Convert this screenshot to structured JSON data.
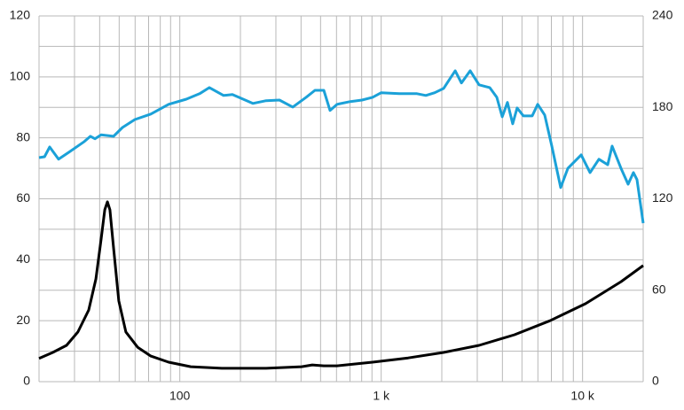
{
  "chart_data": {
    "type": "line",
    "xscale": "log",
    "xlim": [
      20,
      20000
    ],
    "xticks": [
      {
        "value": 100,
        "label": "100"
      },
      {
        "value": 1000,
        "label": "1 k"
      },
      {
        "value": 10000,
        "label": "10 k"
      }
    ],
    "xgrid": [
      20,
      30,
      40,
      50,
      60,
      70,
      80,
      90,
      100,
      200,
      300,
      400,
      500,
      600,
      700,
      800,
      900,
      1000,
      2000,
      3000,
      4000,
      5000,
      6000,
      7000,
      8000,
      9000,
      10000,
      20000
    ],
    "ylim": [
      0,
      120
    ],
    "yticks": [
      0,
      20,
      40,
      60,
      80,
      100,
      120
    ],
    "ygrid": [
      0,
      10,
      20,
      30,
      40,
      50,
      60,
      70,
      80,
      90,
      100,
      110,
      120
    ],
    "y2lim": [
      0,
      240
    ],
    "y2ticks": [
      0,
      60,
      120,
      180,
      240
    ],
    "grid": true,
    "series": [
      {
        "color": "#1ba1d8",
        "x": [
          20,
          21.3,
          22.6,
          25,
          28.2,
          33.6,
          36,
          37.9,
          40.7,
          46.9,
          51.9,
          59.8,
          71.8,
          88,
          107.7,
          125.4,
          140.3,
          165,
          182.5,
          230.5,
          268.5,
          312.5,
          364,
          423.6,
          469,
          519,
          557,
          604,
          703,
          803,
          906,
          1000,
          1230,
          1506,
          1667,
          1845,
          2042,
          2330,
          2502,
          2768,
          3063,
          3460,
          3752,
          3990,
          4238,
          4500,
          4734,
          5083,
          5624,
          5985,
          6488,
          7034,
          7783,
          8452,
          9846,
          10890,
          12050,
          13330,
          14020,
          15520,
          16830,
          17890,
          18620,
          20000
        ],
        "values": [
          73.5,
          73.8,
          77,
          73,
          75.3,
          78.8,
          80.5,
          79.7,
          81,
          80.5,
          83.4,
          86,
          87.8,
          91,
          92.7,
          94.5,
          96.5,
          93.9,
          94.2,
          91.3,
          92.2,
          92.4,
          90.1,
          93.3,
          95.6,
          95.6,
          89,
          91,
          91.9,
          92.4,
          93.3,
          94.8,
          94.5,
          94.5,
          93.9,
          94.8,
          96.2,
          102,
          98,
          102,
          97.4,
          96.5,
          93.3,
          86.9,
          91.6,
          84.6,
          89.8,
          87.2,
          87.2,
          91,
          87.5,
          77.3,
          63.7,
          70,
          74.4,
          68.6,
          73,
          71.2,
          77.3,
          70,
          64.8,
          68.6,
          66.3,
          52
        ]
      },
      {
        "color": "#000000",
        "x": [
          20,
          23.4,
          27.4,
          31.2,
          35.3,
          38.3,
          40.7,
          42.4,
          43.7,
          45,
          46.9,
          49.8,
          54,
          61.7,
          71.8,
          88,
          113.3,
          161.7,
          268.5,
          402.8,
          455,
          519,
          604,
          906,
          1361,
          2042,
          3063,
          4594,
          6890,
          10350,
          15520,
          20000
        ],
        "values": [
          7.6,
          9.6,
          11.9,
          16.3,
          23.5,
          33.7,
          46.8,
          56.4,
          59,
          56.4,
          43.9,
          26.5,
          16.3,
          11.3,
          8.4,
          6.4,
          4.9,
          4.4,
          4.4,
          4.9,
          5.5,
          5.2,
          5.2,
          6.4,
          7.8,
          9.6,
          11.9,
          15.4,
          20,
          25.6,
          32.8,
          38.1
        ]
      }
    ]
  }
}
